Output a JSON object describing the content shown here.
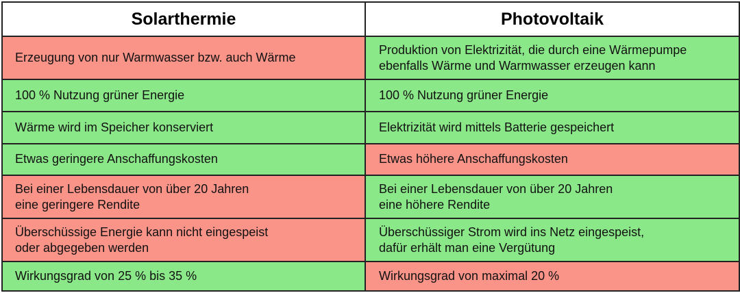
{
  "headers": {
    "left": "Solarthermie",
    "right": "Photovoltaik"
  },
  "colors": {
    "negative": "#fa9489",
    "positive": "#8be888",
    "border": "#222222"
  },
  "rows": [
    {
      "left": {
        "text": "Erzeugung von nur Warmwasser bzw. auch Wärme",
        "status": "negative"
      },
      "right": {
        "text": "Produktion von Elektrizität, die durch eine Wärmepumpe\nebenfalls Wärme und Warmwasser erzeugen kann",
        "status": "positive"
      }
    },
    {
      "left": {
        "text": "100 % Nutzung grüner Energie",
        "status": "positive"
      },
      "right": {
        "text": "100 % Nutzung grüner Energie",
        "status": "positive"
      }
    },
    {
      "left": {
        "text": "Wärme wird im Speicher konserviert",
        "status": "positive"
      },
      "right": {
        "text": "Elektrizität wird mittels Batterie gespeichert",
        "status": "positive"
      }
    },
    {
      "left": {
        "text": "Etwas geringere Anschaffungskosten",
        "status": "positive"
      },
      "right": {
        "text": "Etwas höhere Anschaffungskosten",
        "status": "negative"
      }
    },
    {
      "left": {
        "text": "Bei einer Lebensdauer von über 20 Jahren\neine geringere Rendite",
        "status": "negative"
      },
      "right": {
        "text": "Bei einer Lebensdauer von über 20 Jahren\neine höhere Rendite",
        "status": "positive"
      }
    },
    {
      "left": {
        "text": "Überschüssige Energie kann nicht eingespeist\noder abgegeben werden",
        "status": "negative"
      },
      "right": {
        "text": "Überschüssiger Strom wird ins Netz eingespeist,\ndafür erhält man eine Vergütung",
        "status": "positive"
      }
    },
    {
      "left": {
        "text": "Wirkungsgrad von 25 % bis 35 %",
        "status": "positive"
      },
      "right": {
        "text": "Wirkungsgrad von maximal 20 %",
        "status": "negative"
      }
    }
  ]
}
